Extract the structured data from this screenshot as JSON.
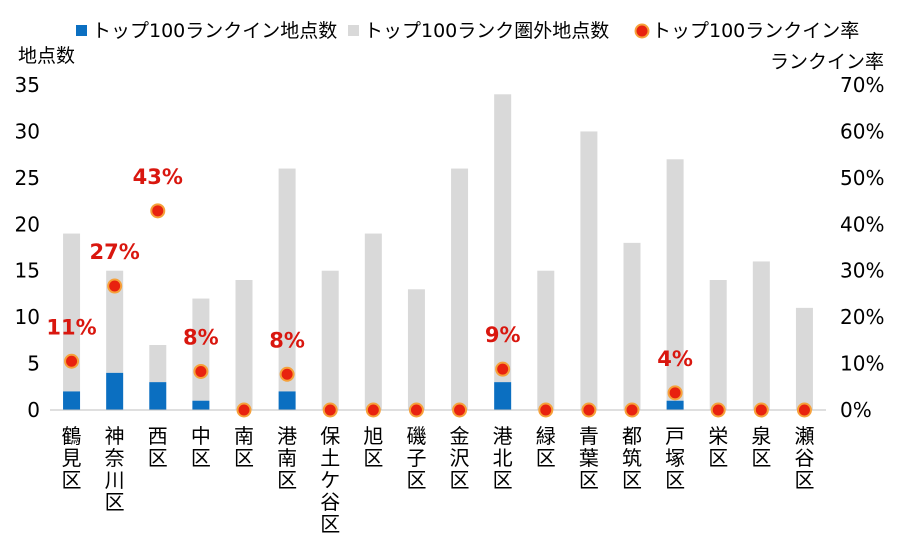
{
  "chart_data": {
    "type": "bar",
    "stacked": true,
    "categories": [
      "鶴見区",
      "神奈川区",
      "西区",
      "中区",
      "南区",
      "港南区",
      "保土ケ谷区",
      "旭区",
      "磯子区",
      "金沢区",
      "港北区",
      "緑区",
      "青葉区",
      "都筑区",
      "戸塚区",
      "栄区",
      "泉区",
      "瀬谷区"
    ],
    "series": [
      {
        "name": "トップ100ランクイン地点数",
        "color": "#0b6fc1",
        "axis": "left",
        "values": [
          2,
          4,
          3,
          1,
          0,
          2,
          0,
          0,
          0,
          0,
          3,
          0,
          0,
          0,
          1,
          0,
          0,
          0
        ]
      },
      {
        "name": "トップ100ランク圏外地点数",
        "color": "#d9d9d9",
        "axis": "left",
        "values": [
          17,
          11,
          4,
          11,
          14,
          24,
          15,
          19,
          13,
          26,
          31,
          15,
          30,
          18,
          26,
          14,
          16,
          11
        ]
      },
      {
        "name": "トップ100ランクイン率",
        "type": "scatter",
        "color": "#e8220f",
        "axis": "right",
        "values": [
          10.5,
          26.7,
          42.9,
          8.3,
          0,
          7.7,
          0,
          0,
          0,
          0,
          8.8,
          0,
          0,
          0,
          3.7,
          0,
          0,
          0
        ]
      }
    ],
    "data_labels": [
      "11%",
      "27%",
      "43%",
      "8%",
      "",
      "8%",
      "",
      "",
      "",
      "",
      "9%",
      "",
      "",
      "",
      "4%",
      "",
      "",
      ""
    ],
    "ylabel": "地点数",
    "ylabel_right": "ランクイン率",
    "ylim": [
      0,
      35
    ],
    "yticks": [
      "0",
      "5",
      "10",
      "15",
      "20",
      "25",
      "30",
      "35"
    ],
    "ylim_right": [
      0,
      70
    ],
    "yticks_right": [
      "0%",
      "10%",
      "20%",
      "30%",
      "40%",
      "50%",
      "60%",
      "70%"
    ],
    "grid": false,
    "legend_position": "top"
  }
}
